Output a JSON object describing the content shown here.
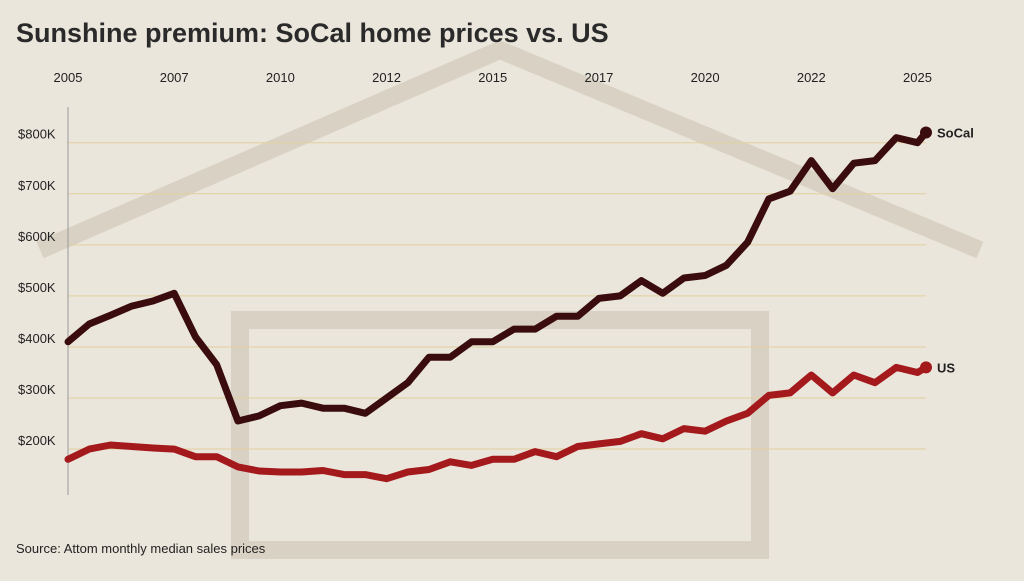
{
  "chart_data": {
    "type": "line",
    "title": "Sunshine premium: SoCal home prices vs. US",
    "source": "Source: Attom monthly median sales prices",
    "x": [
      2005.0,
      2005.5,
      2006.0,
      2006.5,
      2007.0,
      2007.5,
      2008.0,
      2008.5,
      2009.0,
      2009.5,
      2010.0,
      2010.5,
      2011.0,
      2011.5,
      2012.0,
      2012.5,
      2013.0,
      2013.5,
      2014.0,
      2014.5,
      2015.0,
      2015.5,
      2016.0,
      2016.5,
      2017.0,
      2017.5,
      2018.0,
      2018.5,
      2019.0,
      2019.5,
      2020.0,
      2020.5,
      2021.0,
      2021.5,
      2022.0,
      2022.5,
      2023.0,
      2023.5,
      2024.0,
      2024.5,
      2025.0,
      2025.2
    ],
    "series": [
      {
        "name": "SoCal",
        "color": "#3a0c0e",
        "values": [
          410000,
          445000,
          462000,
          480000,
          490000,
          505000,
          420000,
          365000,
          255000,
          265000,
          285000,
          290000,
          280000,
          280000,
          270000,
          300000,
          330000,
          380000,
          380000,
          410000,
          410000,
          435000,
          435000,
          460000,
          460000,
          495000,
          500000,
          530000,
          505000,
          535000,
          540000,
          560000,
          605000,
          690000,
          705000,
          765000,
          710000,
          760000,
          765000,
          810000,
          800000,
          820000
        ]
      },
      {
        "name": "US",
        "color": "#a3191c",
        "values": [
          180000,
          200000,
          208000,
          205000,
          202000,
          200000,
          185000,
          185000,
          165000,
          157000,
          155000,
          155000,
          158000,
          150000,
          150000,
          142000,
          155000,
          160000,
          175000,
          168000,
          180000,
          180000,
          195000,
          185000,
          205000,
          210000,
          215000,
          230000,
          220000,
          240000,
          235000,
          255000,
          270000,
          305000,
          310000,
          345000,
          310000,
          345000,
          330000,
          360000,
          350000,
          360000
        ]
      }
    ],
    "xlim": [
      2005,
      2025.2
    ],
    "xticks": [
      2005,
      {
        "value": 2007.5,
        "label": "2007"
      },
      2010,
      {
        "value": 2012.5,
        "label": "2012"
      },
      2015,
      {
        "value": 2017.5,
        "label": "2017"
      },
      2020,
      {
        "value": 2022.5,
        "label": "2022"
      },
      2025
    ],
    "ylim": [
      110000,
      870000
    ],
    "yticks": [
      {
        "value": 200000,
        "label": "$200K"
      },
      {
        "value": 300000,
        "label": "$300K"
      },
      {
        "value": 400000,
        "label": "$400K"
      },
      {
        "value": 500000,
        "label": "$500K"
      },
      {
        "value": 600000,
        "label": "$600K"
      },
      {
        "value": 700000,
        "label": "$700K"
      },
      {
        "value": 800000,
        "label": "$800K"
      }
    ],
    "grid": true
  }
}
